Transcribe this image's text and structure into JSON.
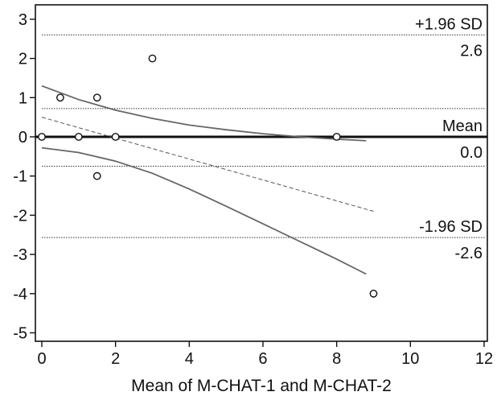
{
  "chart_data": {
    "type": "scatter",
    "xlabel": "Mean of M-CHAT-1 and M-CHAT-2",
    "ylabel": "",
    "xlim": [
      -0.2,
      12
    ],
    "ylim": [
      -5.2,
      3.3
    ],
    "xticks": [
      0,
      2,
      4,
      6,
      8,
      10,
      12
    ],
    "yticks": [
      3,
      2,
      1,
      0,
      -1,
      -2,
      -3,
      -4,
      -5
    ],
    "grid": false,
    "points": [
      {
        "x": 0,
        "y": 0
      },
      {
        "x": 0.5,
        "y": 1
      },
      {
        "x": 1,
        "y": 0
      },
      {
        "x": 1.5,
        "y": 1
      },
      {
        "x": 1.5,
        "y": -1
      },
      {
        "x": 2,
        "y": 0
      },
      {
        "x": 3,
        "y": 2
      },
      {
        "x": 8,
        "y": 0
      },
      {
        "x": 9,
        "y": -4
      }
    ],
    "reference_lines": [
      {
        "key": "upper_loa",
        "label": "+1.96 SD",
        "value_label": "2.6",
        "y": 2.6,
        "style": "dotted"
      },
      {
        "key": "upper_ci",
        "y": 0.72,
        "style": "dotted"
      },
      {
        "key": "mean",
        "label": "Mean",
        "value_label": "0.0",
        "y": 0,
        "style": "solid-bold"
      },
      {
        "key": "lower_ci",
        "y": -0.75,
        "style": "dotted"
      },
      {
        "key": "lower_loa",
        "label": "-1.96 SD",
        "value_label": "-2.6",
        "y": -2.57,
        "style": "dotted"
      }
    ],
    "regression_line": {
      "x": [
        0,
        9.0
      ],
      "y": [
        0.5,
        -1.9
      ],
      "style": "dashed"
    },
    "ci_upper_curve": {
      "x": [
        0,
        1,
        2,
        3,
        4,
        5,
        6,
        7,
        8,
        8.8
      ],
      "y": [
        1.3,
        0.95,
        0.68,
        0.47,
        0.3,
        0.18,
        0.08,
        0.0,
        -0.06,
        -0.1
      ]
    },
    "ci_lower_curve": {
      "x": [
        0,
        1,
        2,
        3,
        4,
        5,
        6,
        7,
        8,
        8.8
      ],
      "y": [
        -0.28,
        -0.4,
        -0.62,
        -0.93,
        -1.33,
        -1.77,
        -2.22,
        -2.67,
        -3.12,
        -3.5
      ]
    }
  }
}
